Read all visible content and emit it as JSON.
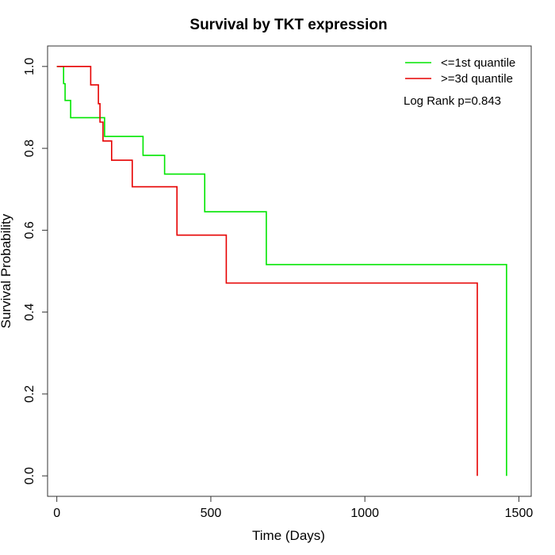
{
  "chart_data": {
    "type": "line",
    "title": "Survival by TKT expression",
    "xlabel": "Time (Days)",
    "ylabel": "Survival Probability",
    "xlim": [
      -30,
      1540
    ],
    "ylim": [
      -0.05,
      1.05
    ],
    "x_ticks": [
      0,
      500,
      1000,
      1500
    ],
    "y_ticks": [
      0.0,
      0.2,
      0.4,
      0.6,
      0.8,
      1.0
    ],
    "x_tick_labels": [
      "0",
      "500",
      "1000",
      "1500"
    ],
    "y_tick_labels": [
      "0.0",
      "0.2",
      "0.4",
      "0.6",
      "0.8",
      "1.0"
    ],
    "legend_position": "top-right",
    "annotation": "Log Rank p=0.843",
    "series": [
      {
        "name": "<=1st quantile",
        "color": "#00e600",
        "step": true,
        "x": [
          0,
          22,
          22,
          27,
          27,
          45,
          45,
          155,
          155,
          280,
          280,
          350,
          350,
          480,
          480,
          680,
          680,
          1460,
          1460
        ],
        "y": [
          1.0,
          1.0,
          0.958,
          0.958,
          0.917,
          0.917,
          0.875,
          0.875,
          0.829,
          0.829,
          0.783,
          0.783,
          0.737,
          0.737,
          0.645,
          0.645,
          0.516,
          0.516,
          0.0
        ]
      },
      {
        "name": ">=3d quantile",
        "color": "#e60000",
        "step": true,
        "x": [
          0,
          110,
          110,
          135,
          135,
          140,
          140,
          150,
          150,
          178,
          178,
          245,
          245,
          390,
          390,
          550,
          550,
          760,
          760,
          1365,
          1365
        ],
        "y": [
          1.0,
          1.0,
          0.955,
          0.955,
          0.909,
          0.909,
          0.864,
          0.864,
          0.818,
          0.818,
          0.771,
          0.771,
          0.706,
          0.706,
          0.588,
          0.588,
          0.471,
          0.471,
          0.471,
          0.471,
          0.0
        ]
      }
    ]
  }
}
